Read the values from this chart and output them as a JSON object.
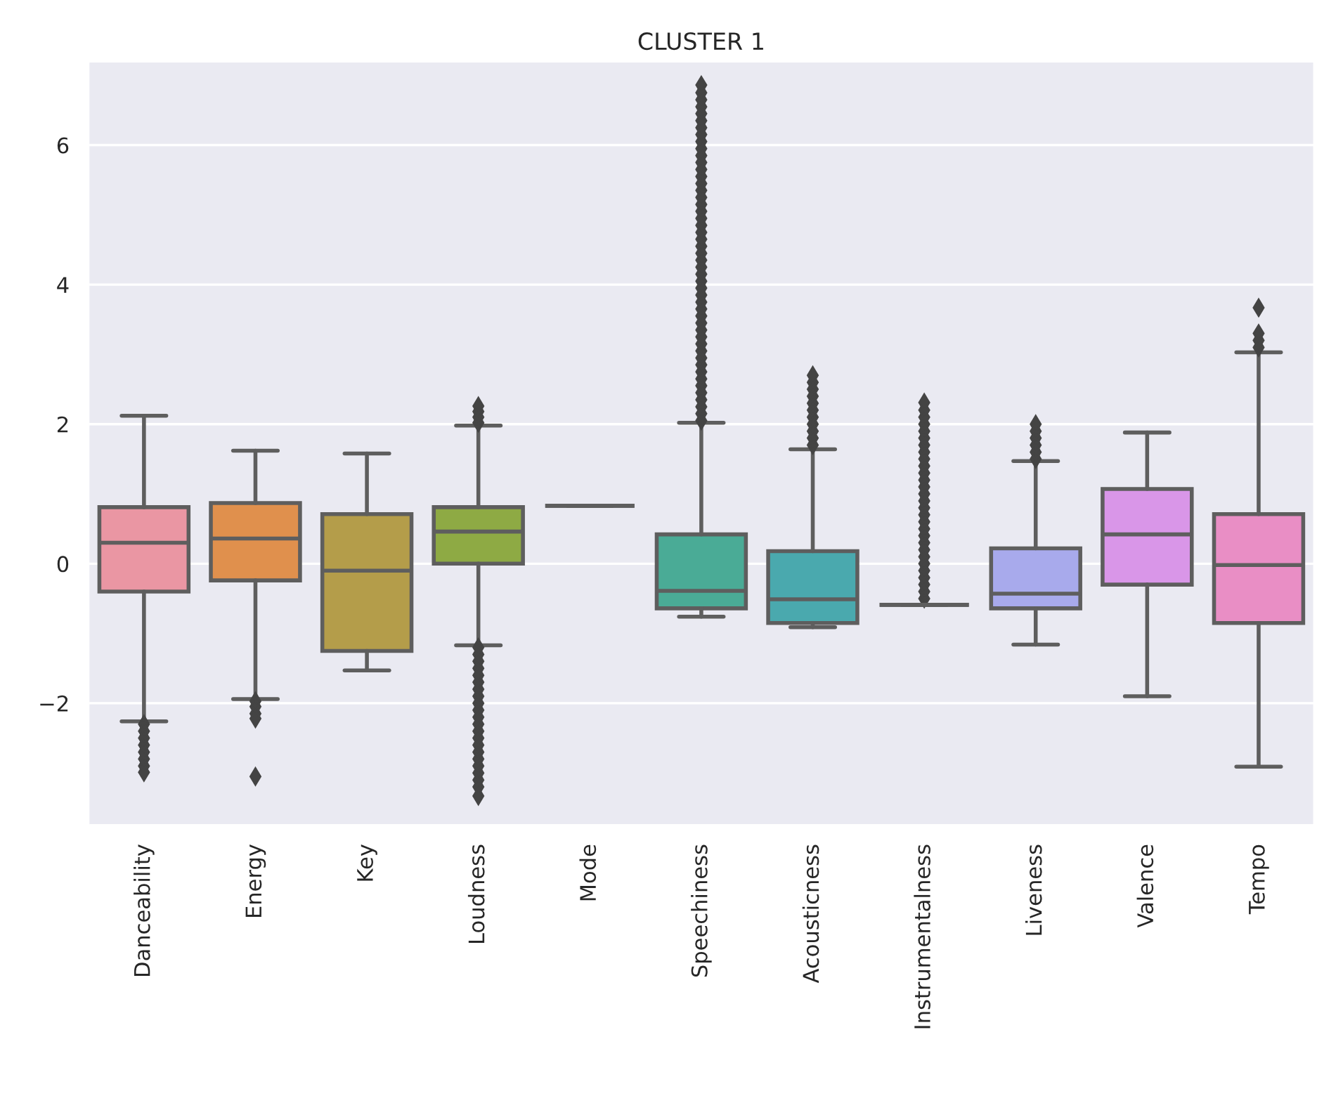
{
  "chart_data": {
    "type": "box",
    "title": "CLUSTER 1",
    "categories": [
      "Danceability",
      "Energy",
      "Key",
      "Loudness",
      "Mode",
      "Speechiness",
      "Acousticness",
      "Instrumentalness",
      "Liveness",
      "Valence",
      "Tempo"
    ],
    "colors": [
      "#ea96a3",
      "#e0904d",
      "#b49d4a",
      "#8eaa44",
      "#5e5e5e",
      "#4aab96",
      "#4aa9ae",
      "#5e5e5e",
      "#a8aaec",
      "#d996e8",
      "#e98ec5"
    ],
    "boxes": [
      {
        "low": -2.26,
        "q1": -0.4,
        "median": 0.3,
        "q3": 0.81,
        "high": 2.12,
        "outliers": [
          -2.3,
          -2.4,
          -2.5,
          -2.6,
          -2.7,
          -2.8,
          -2.9,
          -2.99
        ]
      },
      {
        "low": -1.94,
        "q1": -0.24,
        "median": 0.36,
        "q3": 0.87,
        "high": 1.62,
        "outliers": [
          -1.97,
          -2.05,
          -2.15,
          -2.22,
          -3.05
        ]
      },
      {
        "low": -1.53,
        "q1": -1.25,
        "median": -0.1,
        "q3": 0.71,
        "high": 1.58
      },
      {
        "low": -1.17,
        "q1": 0.0,
        "median": 0.46,
        "q3": 0.81,
        "high": 1.98,
        "outliers": [
          2.02,
          2.1,
          2.18,
          2.26,
          -1.2,
          -1.3,
          -1.4,
          -1.5,
          -1.6,
          -1.7,
          -1.8,
          -1.9,
          -2.0,
          -2.1,
          -2.2,
          -2.3,
          -2.4,
          -2.5,
          -2.6,
          -2.7,
          -2.8,
          -2.9,
          -3.0,
          -3.1,
          -3.2,
          -3.33
        ]
      },
      {
        "low": 0.83,
        "q1": 0.83,
        "median": 0.83,
        "q3": 0.83,
        "high": 0.83
      },
      {
        "low": -0.76,
        "q1": -0.64,
        "median": -0.39,
        "q3": 0.42,
        "high": 2.02,
        "outliers": [
          2.05,
          2.15,
          2.25,
          2.35,
          2.45,
          2.55,
          2.65,
          2.75,
          2.85,
          2.95,
          3.05,
          3.15,
          3.25,
          3.35,
          3.45,
          3.55,
          3.65,
          3.75,
          3.85,
          3.95,
          4.05,
          4.15,
          4.25,
          4.35,
          4.45,
          4.55,
          4.65,
          4.75,
          4.85,
          4.95,
          5.05,
          5.15,
          5.25,
          5.35,
          5.45,
          5.55,
          5.65,
          5.75,
          5.85,
          5.95,
          6.05,
          6.15,
          6.25,
          6.35,
          6.45,
          6.55,
          6.65,
          6.75,
          6.86
        ]
      },
      {
        "low": -0.91,
        "q1": -0.85,
        "median": -0.51,
        "q3": 0.18,
        "high": 1.64,
        "outliers": [
          1.7,
          1.8,
          1.9,
          2.0,
          2.1,
          2.2,
          2.3,
          2.4,
          2.5,
          2.6,
          2.7
        ]
      },
      {
        "low": -0.59,
        "q1": -0.59,
        "median": -0.59,
        "q3": -0.59,
        "high": -0.59,
        "outliers": [
          -0.5,
          -0.4,
          -0.3,
          -0.2,
          -0.1,
          0.0,
          0.1,
          0.2,
          0.3,
          0.4,
          0.5,
          0.6,
          0.7,
          0.8,
          0.9,
          1.0,
          1.1,
          1.2,
          1.3,
          1.4,
          1.5,
          1.6,
          1.7,
          1.8,
          1.9,
          2.0,
          2.1,
          2.2,
          2.31
        ]
      },
      {
        "low": -1.16,
        "q1": -0.64,
        "median": -0.43,
        "q3": 0.22,
        "high": 1.47,
        "outliers": [
          1.5,
          1.6,
          1.7,
          1.8,
          1.9,
          2.0
        ]
      },
      {
        "low": -1.9,
        "q1": -0.3,
        "median": 0.42,
        "q3": 1.07,
        "high": 1.88
      },
      {
        "low": -2.91,
        "q1": -0.85,
        "median": -0.02,
        "q3": 0.71,
        "high": 3.03,
        "outliers": [
          3.1,
          3.2,
          3.3,
          3.67
        ]
      }
    ],
    "ylim": [
      -3.75,
      7.2
    ],
    "yticks": [
      {
        "value": -2,
        "label": "−2"
      },
      0,
      2,
      4,
      6
    ],
    "grid": "y"
  }
}
